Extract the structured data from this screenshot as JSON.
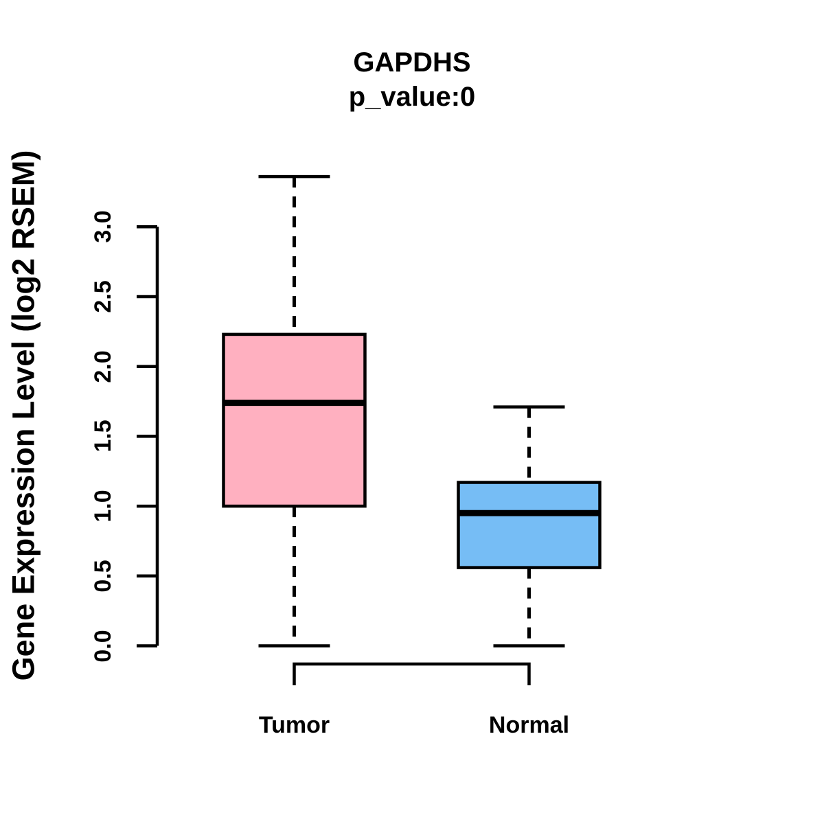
{
  "chart_data": {
    "type": "boxplot",
    "title": "GAPDHS",
    "subtitle": "p_value:0",
    "xlabel": "",
    "ylabel": "Gene Expression Level (log2 RSEM)",
    "axis_ylim": [
      0.0,
      3.0
    ],
    "yticks": {
      "values": [
        0.0,
        0.5,
        1.0,
        1.5,
        2.0,
        2.5,
        3.0
      ],
      "labels": [
        "0.0",
        "0.5",
        "1.0",
        "1.5",
        "2.0",
        "2.5",
        "3.0"
      ]
    },
    "categories": [
      "Tumor",
      "Normal"
    ],
    "series": [
      {
        "name": "Tumor",
        "fill_color": "#FFB0C0",
        "stats": {
          "whisker_low": 0.0,
          "q1": 1.0,
          "median": 1.74,
          "q3": 2.23,
          "whisker_high": 3.36
        }
      },
      {
        "name": "Normal",
        "fill_color": "#76BDF5",
        "stats": {
          "whisker_low": 0.0,
          "q1": 0.56,
          "median": 0.95,
          "q3": 1.17,
          "whisker_high": 1.71
        }
      }
    ],
    "outline_color": "#000000",
    "text_color": "#000000",
    "whisker_style": "dashed",
    "grid": false,
    "legend": false
  }
}
